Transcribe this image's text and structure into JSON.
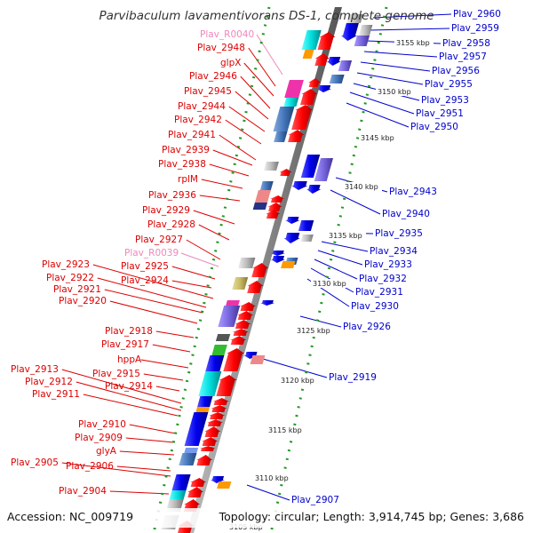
{
  "title": "Parvibaculum lavamentivorans DS-1, complete genome",
  "accession": "Accession: NC_009719",
  "topology": "Topology: circular; Length: 3,914,745 bp; Genes: 3,686",
  "colors": {
    "red_label": "#dd0000",
    "blue_label": "#0000cc",
    "pink_label": "#ee88bb",
    "backbone": "#888888",
    "tick_dots": "#228822"
  },
  "kbp_ticks": [
    "3105 kbp",
    "3110 kbp",
    "3115 kbp",
    "3120 kbp",
    "3125 kbp",
    "3130 kbp",
    "3135 kbp",
    "3140 kbp",
    "3145 kbp",
    "3150 kbp",
    "3155 kbp"
  ],
  "left_labels": [
    {
      "text": "Plav_R0040",
      "type": "pink"
    },
    {
      "text": "Plav_2948",
      "type": "red"
    },
    {
      "text": "glpX",
      "type": "red"
    },
    {
      "text": "Plav_2946",
      "type": "red"
    },
    {
      "text": "Plav_2945",
      "type": "red"
    },
    {
      "text": "Plav_2944",
      "type": "red"
    },
    {
      "text": "Plav_2942",
      "type": "red"
    },
    {
      "text": "Plav_2941",
      "type": "red"
    },
    {
      "text": "Plav_2939",
      "type": "red"
    },
    {
      "text": "Plav_2938",
      "type": "red"
    },
    {
      "text": "rplM",
      "type": "red"
    },
    {
      "text": "Plav_2936",
      "type": "red"
    },
    {
      "text": "Plav_2929",
      "type": "red"
    },
    {
      "text": "Plav_2928",
      "type": "red"
    },
    {
      "text": "Plav_2927",
      "type": "red"
    },
    {
      "text": "Plav_R0039",
      "type": "pink"
    },
    {
      "text": "Plav_2925",
      "type": "red"
    },
    {
      "text": "Plav_2923",
      "type": "red"
    },
    {
      "text": "Plav_2924",
      "type": "red"
    },
    {
      "text": "Plav_2922",
      "type": "red"
    },
    {
      "text": "Plav_2921",
      "type": "red"
    },
    {
      "text": "Plav_2920",
      "type": "red"
    },
    {
      "text": "Plav_2918",
      "type": "red"
    },
    {
      "text": "Plav_2917",
      "type": "red"
    },
    {
      "text": "hppA",
      "type": "red"
    },
    {
      "text": "Plav_2913",
      "type": "red"
    },
    {
      "text": "Plav_2915",
      "type": "red"
    },
    {
      "text": "Plav_2912",
      "type": "red"
    },
    {
      "text": "Plav_2914",
      "type": "red"
    },
    {
      "text": "Plav_2911",
      "type": "red"
    },
    {
      "text": "Plav_2910",
      "type": "red"
    },
    {
      "text": "Plav_2909",
      "type": "red"
    },
    {
      "text": "glyA",
      "type": "red"
    },
    {
      "text": "Plav_2905",
      "type": "red"
    },
    {
      "text": "Plav_2906",
      "type": "red"
    },
    {
      "text": "Plav_2904",
      "type": "red"
    }
  ],
  "right_labels": [
    {
      "text": "Plav_2960"
    },
    {
      "text": "Plav_2959"
    },
    {
      "text": "Plav_2958"
    },
    {
      "text": "Plav_2957"
    },
    {
      "text": "Plav_2956"
    },
    {
      "text": "Plav_2955"
    },
    {
      "text": "Plav_2953"
    },
    {
      "text": "Plav_2951"
    },
    {
      "text": "Plav_2950"
    },
    {
      "text": "Plav_2943"
    },
    {
      "text": "Plav_2940"
    },
    {
      "text": "Plav_2935"
    },
    {
      "text": "Plav_2934"
    },
    {
      "text": "Plav_2933"
    },
    {
      "text": "Plav_2932"
    },
    {
      "text": "Plav_2931"
    },
    {
      "text": "Plav_2930"
    },
    {
      "text": "Plav_2926"
    },
    {
      "text": "Plav_2919"
    },
    {
      "text": "Plav_2907"
    }
  ]
}
